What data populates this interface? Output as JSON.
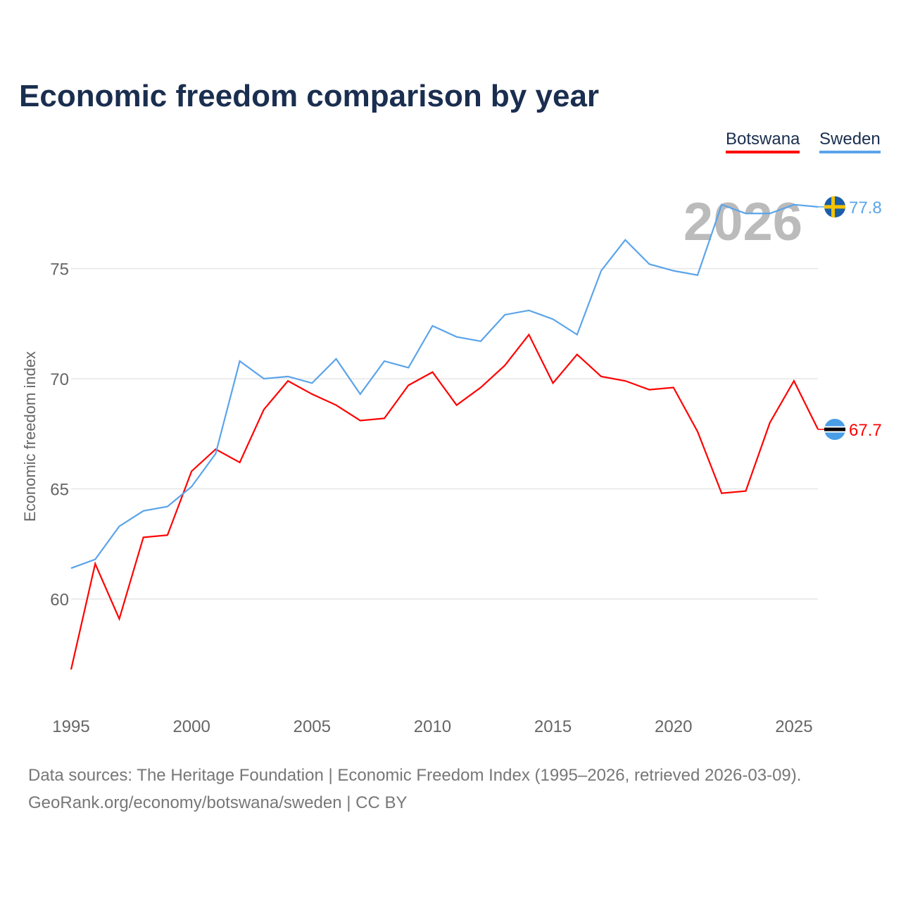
{
  "chart_data": {
    "type": "line",
    "title": "Economic freedom comparison by year",
    "ylabel": "Economic freedom index",
    "xlabel": "",
    "x": [
      1995,
      1996,
      1997,
      1998,
      1999,
      2000,
      2001,
      2002,
      2003,
      2004,
      2005,
      2006,
      2007,
      2008,
      2009,
      2010,
      2011,
      2012,
      2013,
      2014,
      2015,
      2016,
      2017,
      2018,
      2019,
      2020,
      2021,
      2022,
      2023,
      2024,
      2025,
      2026
    ],
    "xlim": [
      1995,
      2026
    ],
    "ylim": [
      56,
      79
    ],
    "x_ticks": [
      1995,
      2000,
      2005,
      2010,
      2015,
      2020,
      2025
    ],
    "y_ticks": [
      60,
      65,
      70,
      75
    ],
    "grid": true,
    "legend_position": "top-right",
    "watermark_year": "2026",
    "series": [
      {
        "name": "Botswana",
        "color": "#ff0000",
        "end_label": "67.7",
        "flag": "botswana-flag",
        "values": [
          56.8,
          61.6,
          59.1,
          62.8,
          62.9,
          65.8,
          66.8,
          66.2,
          68.6,
          69.9,
          69.3,
          68.8,
          68.1,
          68.2,
          69.7,
          70.3,
          68.8,
          69.6,
          70.6,
          72.0,
          69.8,
          71.1,
          70.1,
          69.9,
          69.5,
          69.6,
          67.6,
          64.8,
          64.9,
          68.0,
          69.9,
          67.7
        ]
      },
      {
        "name": "Sweden",
        "color": "#5ba4ea",
        "end_label": "77.8",
        "flag": "sweden-flag",
        "values": [
          61.4,
          61.8,
          63.3,
          64.0,
          64.2,
          65.1,
          66.6,
          70.8,
          70.0,
          70.1,
          69.8,
          70.9,
          69.3,
          70.8,
          70.5,
          72.4,
          71.9,
          71.7,
          72.9,
          73.1,
          72.7,
          72.0,
          74.9,
          76.3,
          75.2,
          74.9,
          74.7,
          77.9,
          77.5,
          77.5,
          77.9,
          77.8
        ]
      }
    ]
  },
  "footer": {
    "line1": "Data sources: The Heritage Foundation | Economic Freedom Index (1995–2026, retrieved 2026-03-09).",
    "line2": "GeoRank.org/economy/botswana/sweden | CC BY"
  }
}
